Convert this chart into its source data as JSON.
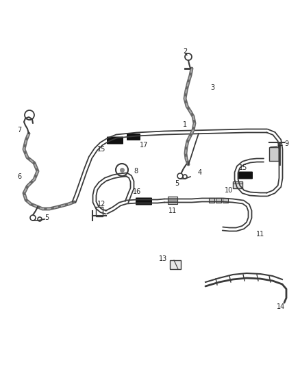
{
  "bg_color": "#ffffff",
  "line_color": "#3a3a3a",
  "lc2": "#555555",
  "black_color": "#111111",
  "fig_width": 4.38,
  "fig_height": 5.33,
  "dpi": 100,
  "label_fs": 7.0,
  "label_color": "#222222"
}
